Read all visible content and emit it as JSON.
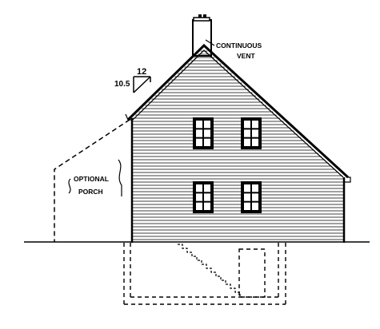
{
  "annotations": {
    "continuous_vent_line1": "CONTINUOUS",
    "continuous_vent_line2": "VENT",
    "optional_porch_line1": "OPTIONAL",
    "optional_porch_line2": "PORCH"
  },
  "roof_pitch": {
    "rise": "10.5",
    "run": "12"
  },
  "colors": {
    "ink": "#000000",
    "paper": "#ffffff"
  },
  "icons": [
    "roof-pitch-triangle-icon",
    "porch-callout-arrow-icon"
  ]
}
